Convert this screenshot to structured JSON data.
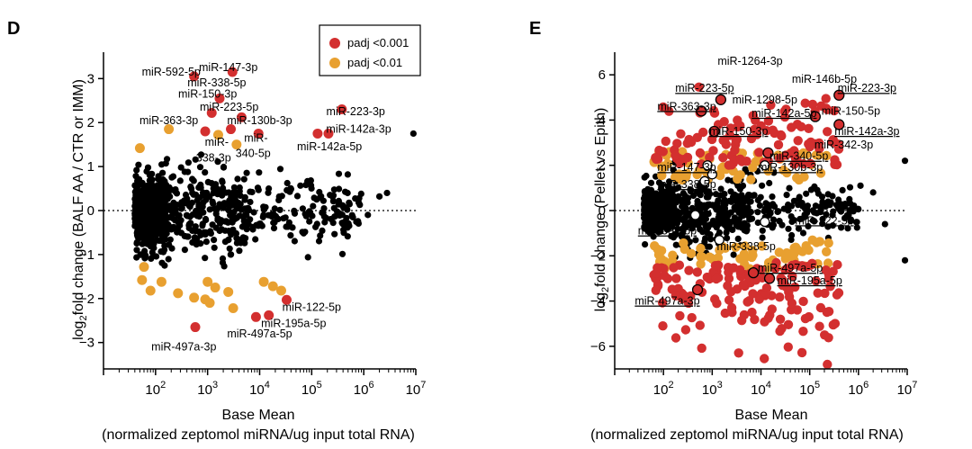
{
  "chart_data": [
    {
      "panel": "D",
      "type": "scatter",
      "xlabel": "Base Mean",
      "xlabel_sub": "(normalized zeptomol miRNA/ug input total RNA)",
      "ylabel_main": "log",
      "ylabel_sub": "2",
      "ylabel_rest": "fold change (BALF AA / CTR or IMM)",
      "x_scale": "log",
      "xlim": [
        10,
        10000000
      ],
      "ylim": [
        -3.6,
        3.6
      ],
      "y_ticks": [
        -3,
        -2,
        -1,
        0,
        1,
        2,
        3
      ],
      "x_ticks": [
        {
          "value": 100,
          "base": "10",
          "exp": "2"
        },
        {
          "value": 1000,
          "base": "10",
          "exp": "3"
        },
        {
          "value": 10000,
          "base": "10",
          "exp": "4"
        },
        {
          "value": 100000,
          "base": "10",
          "exp": "5"
        },
        {
          "value": 1000000,
          "base": "10",
          "exp": "6"
        },
        {
          "value": 10000000,
          "base": "10",
          "exp": "7"
        }
      ],
      "legend": {
        "position": "top-right",
        "entries": [
          {
            "label": "padj <0.001",
            "color": "#d32f2f"
          },
          {
            "label": "padj <0.01",
            "color": "#e8a030"
          }
        ]
      },
      "colors": {
        "red": "#d32f2f",
        "orange": "#e8a030",
        "black": "#000000"
      },
      "red_points": [
        [
          550,
          3.05
        ],
        [
          3000,
          3.15
        ],
        [
          1700,
          2.55
        ],
        [
          1200,
          2.22
        ],
        [
          4500,
          2.12
        ],
        [
          900,
          1.8
        ],
        [
          2800,
          1.85
        ],
        [
          9500,
          1.75
        ],
        [
          130000,
          1.75
        ],
        [
          210000,
          1.75
        ],
        [
          380000,
          2.3
        ],
        [
          33000,
          -2.03
        ],
        [
          8500,
          -2.42
        ],
        [
          15000,
          -2.38
        ],
        [
          580,
          -2.65
        ]
      ],
      "orange_points": [
        [
          180,
          1.85
        ],
        [
          50,
          1.42
        ],
        [
          1600,
          1.72
        ],
        [
          3600,
          1.5
        ],
        [
          60,
          -1.28
        ],
        [
          55,
          -1.58
        ],
        [
          130,
          -1.62
        ],
        [
          80,
          -1.82
        ],
        [
          1000,
          -1.62
        ],
        [
          1400,
          -1.75
        ],
        [
          2500,
          -1.85
        ],
        [
          270,
          -1.88
        ],
        [
          550,
          -1.98
        ],
        [
          3100,
          -2.22
        ],
        [
          1100,
          -2.1
        ],
        [
          12000,
          -1.62
        ],
        [
          18000,
          -1.72
        ],
        [
          26000,
          -1.82
        ],
        [
          900,
          -2.02
        ]
      ],
      "annotations": [
        {
          "text": "miR-592-5p",
          "x": 200,
          "y": 3.15
        },
        {
          "text": "miR-147-3p",
          "x": 2500,
          "y": 3.25
        },
        {
          "text": "miR-338-5p",
          "x": 1500,
          "y": 2.9
        },
        {
          "text": "miR-150-3p",
          "x": 1000,
          "y": 2.65
        },
        {
          "text": "miR-223-5p",
          "x": 2600,
          "y": 2.35
        },
        {
          "text": "miR-223-3p",
          "x": 700000,
          "y": 2.25
        },
        {
          "text": "miR-363-3p",
          "x": 180,
          "y": 2.05
        },
        {
          "text": "miR-130b-3p",
          "x": 10000,
          "y": 2.05
        },
        {
          "text": "miR-142a-3p",
          "x": 800000,
          "y": 1.85
        },
        {
          "text": "miR-",
          "x": 1500,
          "y": 1.55
        },
        {
          "text": "338-3p",
          "x": 1300,
          "y": 1.2
        },
        {
          "text": "miR-",
          "x": 8500,
          "y": 1.65
        },
        {
          "text": "340-5p",
          "x": 7500,
          "y": 1.3
        },
        {
          "text": "miR-142a-5p",
          "x": 220000,
          "y": 1.45
        },
        {
          "text": "miR-122-5p",
          "x": 100000,
          "y": -2.2
        },
        {
          "text": "miR-195a-5p",
          "x": 45000,
          "y": -2.57
        },
        {
          "text": "miR-497a-5p",
          "x": 10000,
          "y": -2.8
        },
        {
          "text": "miR-497a-3p",
          "x": 350,
          "y": -3.1
        }
      ]
    },
    {
      "panel": "E",
      "type": "scatter",
      "xlabel": "Base Mean",
      "xlabel_sub": "(normalized zeptomol miRNA/ug input total RNA)",
      "ylabel_main": "log",
      "ylabel_sub": "2",
      "ylabel_rest": "fold change (Pellet vs Epith)",
      "x_scale": "log",
      "xlim": [
        10,
        10000000
      ],
      "ylim": [
        -7,
        7
      ],
      "y_ticks": [
        -6,
        -4,
        -2,
        0,
        2,
        4,
        6
      ],
      "x_ticks": [
        {
          "value": 100,
          "base": "10",
          "exp": "2"
        },
        {
          "value": 1000,
          "base": "10",
          "exp": "3"
        },
        {
          "value": 10000,
          "base": "10",
          "exp": "4"
        },
        {
          "value": 100000,
          "base": "10",
          "exp": "5"
        },
        {
          "value": 1000000,
          "base": "10",
          "exp": "6"
        },
        {
          "value": 10000000,
          "base": "10",
          "exp": "7"
        }
      ],
      "colors": {
        "red": "#d32f2f",
        "orange": "#e8a030",
        "black": "#000000"
      },
      "circled_red": [
        [
          1500,
          4.9
        ],
        [
          400000,
          5.1
        ],
        [
          600,
          4.4
        ],
        [
          130000,
          4.15
        ],
        [
          400000,
          3.8
        ],
        [
          1100,
          3.5
        ],
        [
          14000,
          2.55
        ],
        [
          15000,
          -3.0
        ],
        [
          7000,
          -2.75
        ],
        [
          500,
          -3.5
        ]
      ],
      "circled_black": [
        [
          800,
          2.0
        ],
        [
          12000,
          2.0
        ],
        [
          1000,
          1.6
        ],
        [
          700,
          1.3
        ],
        [
          450,
          -0.2
        ],
        [
          12000,
          -0.5
        ],
        [
          1400,
          -1.3
        ]
      ],
      "annotations": [
        {
          "text": "miR-1264-3p",
          "x": 6000,
          "y": 6.6,
          "underline": false
        },
        {
          "text": "miR-146b-5p",
          "x": 200000,
          "y": 5.8,
          "underline": false
        },
        {
          "text": "miR-223-5p",
          "x": 700,
          "y": 5.4,
          "underline": true
        },
        {
          "text": "miR-1298-5p",
          "x": 12000,
          "y": 4.9,
          "underline": false
        },
        {
          "text": "miR-223-3p",
          "x": 1500000,
          "y": 5.4,
          "underline": true
        },
        {
          "text": "miR-150-5p",
          "x": 700000,
          "y": 4.4,
          "underline": false
        },
        {
          "text": "miR-363-3p",
          "x": 300,
          "y": 4.6,
          "underline": true
        },
        {
          "text": "miR-142a-5p",
          "x": 30000,
          "y": 4.3,
          "underline": true
        },
        {
          "text": "miR-142a-3p",
          "x": 1500000,
          "y": 3.5,
          "underline": true
        },
        {
          "text": "miR-150-3p",
          "x": 3500,
          "y": 3.5,
          "underline": true
        },
        {
          "text": "miR-342-3p",
          "x": 500000,
          "y": 2.9,
          "underline": false
        },
        {
          "text": "miR-340-5p",
          "x": 60000,
          "y": 2.4,
          "underline": true
        },
        {
          "text": "miR-147-3p",
          "x": 300,
          "y": 1.9,
          "underline": true
        },
        {
          "text": "miR-130b-3p",
          "x": 40000,
          "y": 1.9,
          "underline": true
        },
        {
          "text": "miR-338-5p",
          "x": 300,
          "y": 1.15,
          "underline": true
        },
        {
          "text": "miR-592-5p",
          "x": 120,
          "y": -0.9,
          "underline": true
        },
        {
          "text": "miR-122-5p",
          "x": 200000,
          "y": -0.45,
          "underline": true
        },
        {
          "text": "miR-338-5p",
          "x": 5000,
          "y": -1.6,
          "underline": false
        },
        {
          "text": "miR-497a-5p",
          "x": 40000,
          "y": -2.55,
          "underline": true
        },
        {
          "text": "miR-195a-5p",
          "x": 100000,
          "y": -3.1,
          "underline": true
        },
        {
          "text": "miR-497a-3p",
          "x": 120,
          "y": -4.0,
          "underline": true
        }
      ]
    }
  ]
}
